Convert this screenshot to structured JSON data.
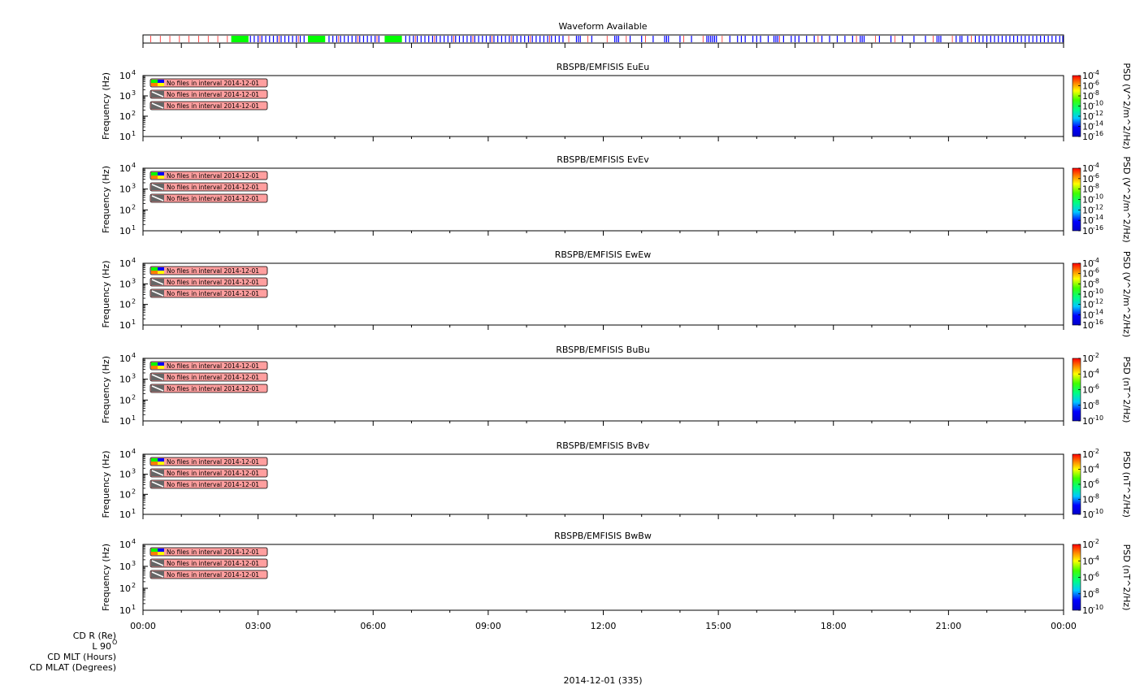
{
  "waveform_bar": {
    "title": "Waveform Available",
    "colors": {
      "green": "#00ff00",
      "blue": "#0000ff",
      "red": "#ff0000"
    },
    "green_spans_hours": [
      [
        2.3,
        2.75
      ],
      [
        4.3,
        4.75
      ],
      [
        6.3,
        6.75
      ]
    ],
    "blue_marks_hours": [
      2.8,
      2.9,
      3.0,
      3.1,
      3.2,
      3.3,
      3.4,
      3.5,
      3.6,
      3.7,
      3.8,
      3.9,
      4.0,
      4.1,
      4.2,
      4.85,
      4.95,
      5.05,
      5.15,
      5.25,
      5.35,
      5.45,
      5.55,
      5.65,
      5.75,
      5.85,
      5.95,
      6.05,
      6.15,
      6.85,
      6.95,
      7.05,
      7.15,
      7.25,
      7.35,
      7.45,
      7.55,
      7.65,
      7.75,
      7.85,
      7.95,
      8.05,
      8.15,
      8.25,
      8.35,
      8.45,
      8.55,
      8.65,
      8.75,
      8.85,
      8.95,
      9.05,
      9.15,
      9.25,
      9.35,
      9.45,
      9.55,
      9.65,
      9.75,
      9.85,
      9.95,
      10.05,
      10.15,
      10.25,
      10.35,
      10.45,
      10.55,
      10.65,
      10.75,
      10.85,
      10.95,
      11.3,
      11.35,
      11.4,
      11.7,
      12.3,
      12.35,
      12.4,
      12.7,
      13.0,
      13.3,
      13.6,
      13.65,
      13.7,
      14.0,
      14.3,
      14.7,
      14.75,
      14.8,
      14.85,
      14.9,
      14.95,
      15.3,
      15.5,
      15.6,
      15.7,
      15.9,
      16.0,
      16.1,
      16.3,
      16.45,
      16.5,
      16.55,
      16.7,
      16.9,
      17.0,
      17.1,
      17.3,
      17.5,
      17.7,
      17.9,
      18.1,
      18.3,
      18.5,
      18.7,
      18.75,
      18.8,
      19.2,
      19.5,
      19.8,
      20.1,
      20.4,
      20.7,
      20.75,
      20.8,
      21.2,
      21.3,
      21.35,
      21.5,
      21.7,
      21.8,
      21.9,
      22.0,
      22.1,
      22.2,
      22.3,
      22.4,
      22.5,
      22.6,
      22.7,
      22.8,
      22.9,
      23.0,
      23.1,
      23.2,
      23.3,
      23.4,
      23.5,
      23.6,
      23.7,
      23.8,
      23.9,
      23.98
    ],
    "red_marks_hours": [
      0.2,
      0.45,
      0.7,
      0.95,
      1.2,
      1.45,
      1.7,
      1.95,
      2.2,
      3.05,
      3.55,
      4.05,
      5.1,
      5.6,
      6.1,
      7.1,
      7.6,
      8.1,
      8.6,
      9.1,
      9.6,
      10.1,
      10.6,
      11.1,
      11.6,
      12.1,
      12.6,
      13.1,
      13.6,
      14.1,
      14.6,
      15.1,
      15.6,
      16.1,
      16.6,
      17.1,
      17.6,
      18.1,
      18.6,
      19.1,
      19.6,
      20.1,
      20.6,
      21.1,
      21.6,
      22.1,
      22.6,
      23.1,
      23.6
    ]
  },
  "panels": [
    {
      "title": "RBSPB/EMFISIS  EuEu",
      "ylabel": "Frequency (Hz)",
      "cb_label": "PSD (V^2/m^2/Hz)",
      "cb_ticks": [
        "-4",
        "-6",
        "-8",
        "-10",
        "-12",
        "-14",
        "-16"
      ]
    },
    {
      "title": "RBSPB/EMFISIS  EvEv",
      "ylabel": "Frequency (Hz)",
      "cb_label": "PSD (V^2/m^2/Hz)",
      "cb_ticks": [
        "-4",
        "-6",
        "-8",
        "-10",
        "-12",
        "-14",
        "-16"
      ]
    },
    {
      "title": "RBSPB/EMFISIS  EwEw",
      "ylabel": "Frequency (Hz)",
      "cb_label": "PSD (V^2/m^2/Hz)",
      "cb_ticks": [
        "-4",
        "-6",
        "-8",
        "-10",
        "-12",
        "-14",
        "-16"
      ]
    },
    {
      "title": "RBSPB/EMFISIS  BuBu",
      "ylabel": "Frequency (Hz)",
      "cb_label": "PSD (nT^2/Hz)",
      "cb_ticks": [
        "-2",
        "-4",
        "-6",
        "-8",
        "-10"
      ]
    },
    {
      "title": "RBSPB/EMFISIS  BvBv",
      "ylabel": "Frequency (Hz)",
      "cb_label": "PSD (nT^2/Hz)",
      "cb_ticks": [
        "-2",
        "-4",
        "-6",
        "-8",
        "-10"
      ]
    },
    {
      "title": "RBSPB/EMFISIS  BwBw",
      "ylabel": "Frequency (Hz)",
      "cb_label": "PSD (nT^2/Hz)",
      "cb_ticks": [
        "-2",
        "-4",
        "-6",
        "-8",
        "-10"
      ]
    }
  ],
  "no_files_message": "No files in interval 2014-12-01",
  "y_tick_exponents": [
    "1",
    "2",
    "3",
    "4"
  ],
  "x_tick_labels": [
    "00:00",
    "03:00",
    "06:00",
    "09:00",
    "12:00",
    "15:00",
    "18:00",
    "21:00",
    "00:00"
  ],
  "ephem_labels": [
    "CD R (Re)",
    "L 90",
    "CD MLT (Hours)",
    "CD MLAT (Degrees)"
  ],
  "ephem_superscript": "O",
  "date_label": "2014-12-01 (335)",
  "chart_data": {
    "type": "heatmap",
    "title": "",
    "x_range_hours": [
      0,
      24
    ],
    "x_tick_hours": [
      0,
      3,
      6,
      9,
      12,
      15,
      18,
      21,
      24
    ],
    "y_scale": "log",
    "y_range_hz": [
      10,
      10000
    ],
    "series": [
      {
        "name": "RBSPB/EMFISIS  EuEu",
        "values": [],
        "colorbar_range_log10": [
          -16,
          -4
        ]
      },
      {
        "name": "RBSPB/EMFISIS  EvEv",
        "values": [],
        "colorbar_range_log10": [
          -16,
          -4
        ]
      },
      {
        "name": "RBSPB/EMFISIS  EwEw",
        "values": [],
        "colorbar_range_log10": [
          -16,
          -4
        ]
      },
      {
        "name": "RBSPB/EMFISIS  BuBu",
        "values": [],
        "colorbar_range_log10": [
          -10,
          -2
        ]
      },
      {
        "name": "RBSPB/EMFISIS  BvBv",
        "values": [],
        "colorbar_range_log10": [
          -10,
          -2
        ]
      },
      {
        "name": "RBSPB/EMFISIS  BwBw",
        "values": [],
        "colorbar_range_log10": [
          -10,
          -2
        ]
      }
    ]
  }
}
